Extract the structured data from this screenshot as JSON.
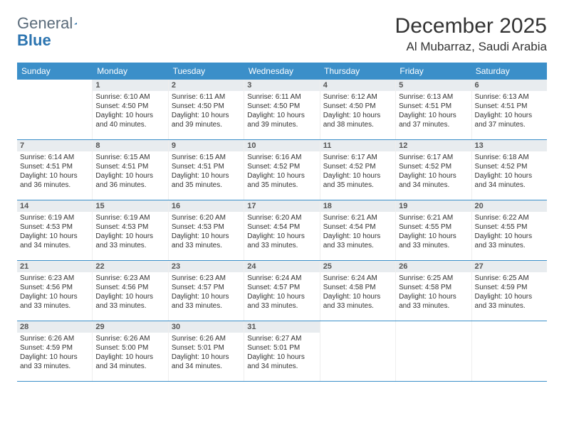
{
  "logo": {
    "text1": "General",
    "text2": "Blue"
  },
  "title": "December 2025",
  "location": "Al Mubarraz, Saudi Arabia",
  "colors": {
    "header_bg": "#3b8fc9",
    "header_text": "#ffffff",
    "daynum_bg": "#e8ecef",
    "week_divider": "#3b8fc9",
    "logo_icon": "#1f6aa5"
  },
  "daynames": [
    "Sunday",
    "Monday",
    "Tuesday",
    "Wednesday",
    "Thursday",
    "Friday",
    "Saturday"
  ],
  "weeks": [
    [
      {
        "day": "",
        "lines": []
      },
      {
        "day": "1",
        "lines": [
          "Sunrise: 6:10 AM",
          "Sunset: 4:50 PM",
          "Daylight: 10 hours",
          "and 40 minutes."
        ]
      },
      {
        "day": "2",
        "lines": [
          "Sunrise: 6:11 AM",
          "Sunset: 4:50 PM",
          "Daylight: 10 hours",
          "and 39 minutes."
        ]
      },
      {
        "day": "3",
        "lines": [
          "Sunrise: 6:11 AM",
          "Sunset: 4:50 PM",
          "Daylight: 10 hours",
          "and 39 minutes."
        ]
      },
      {
        "day": "4",
        "lines": [
          "Sunrise: 6:12 AM",
          "Sunset: 4:50 PM",
          "Daylight: 10 hours",
          "and 38 minutes."
        ]
      },
      {
        "day": "5",
        "lines": [
          "Sunrise: 6:13 AM",
          "Sunset: 4:51 PM",
          "Daylight: 10 hours",
          "and 37 minutes."
        ]
      },
      {
        "day": "6",
        "lines": [
          "Sunrise: 6:13 AM",
          "Sunset: 4:51 PM",
          "Daylight: 10 hours",
          "and 37 minutes."
        ]
      }
    ],
    [
      {
        "day": "7",
        "lines": [
          "Sunrise: 6:14 AM",
          "Sunset: 4:51 PM",
          "Daylight: 10 hours",
          "and 36 minutes."
        ]
      },
      {
        "day": "8",
        "lines": [
          "Sunrise: 6:15 AM",
          "Sunset: 4:51 PM",
          "Daylight: 10 hours",
          "and 36 minutes."
        ]
      },
      {
        "day": "9",
        "lines": [
          "Sunrise: 6:15 AM",
          "Sunset: 4:51 PM",
          "Daylight: 10 hours",
          "and 35 minutes."
        ]
      },
      {
        "day": "10",
        "lines": [
          "Sunrise: 6:16 AM",
          "Sunset: 4:52 PM",
          "Daylight: 10 hours",
          "and 35 minutes."
        ]
      },
      {
        "day": "11",
        "lines": [
          "Sunrise: 6:17 AM",
          "Sunset: 4:52 PM",
          "Daylight: 10 hours",
          "and 35 minutes."
        ]
      },
      {
        "day": "12",
        "lines": [
          "Sunrise: 6:17 AM",
          "Sunset: 4:52 PM",
          "Daylight: 10 hours",
          "and 34 minutes."
        ]
      },
      {
        "day": "13",
        "lines": [
          "Sunrise: 6:18 AM",
          "Sunset: 4:52 PM",
          "Daylight: 10 hours",
          "and 34 minutes."
        ]
      }
    ],
    [
      {
        "day": "14",
        "lines": [
          "Sunrise: 6:19 AM",
          "Sunset: 4:53 PM",
          "Daylight: 10 hours",
          "and 34 minutes."
        ]
      },
      {
        "day": "15",
        "lines": [
          "Sunrise: 6:19 AM",
          "Sunset: 4:53 PM",
          "Daylight: 10 hours",
          "and 33 minutes."
        ]
      },
      {
        "day": "16",
        "lines": [
          "Sunrise: 6:20 AM",
          "Sunset: 4:53 PM",
          "Daylight: 10 hours",
          "and 33 minutes."
        ]
      },
      {
        "day": "17",
        "lines": [
          "Sunrise: 6:20 AM",
          "Sunset: 4:54 PM",
          "Daylight: 10 hours",
          "and 33 minutes."
        ]
      },
      {
        "day": "18",
        "lines": [
          "Sunrise: 6:21 AM",
          "Sunset: 4:54 PM",
          "Daylight: 10 hours",
          "and 33 minutes."
        ]
      },
      {
        "day": "19",
        "lines": [
          "Sunrise: 6:21 AM",
          "Sunset: 4:55 PM",
          "Daylight: 10 hours",
          "and 33 minutes."
        ]
      },
      {
        "day": "20",
        "lines": [
          "Sunrise: 6:22 AM",
          "Sunset: 4:55 PM",
          "Daylight: 10 hours",
          "and 33 minutes."
        ]
      }
    ],
    [
      {
        "day": "21",
        "lines": [
          "Sunrise: 6:23 AM",
          "Sunset: 4:56 PM",
          "Daylight: 10 hours",
          "and 33 minutes."
        ]
      },
      {
        "day": "22",
        "lines": [
          "Sunrise: 6:23 AM",
          "Sunset: 4:56 PM",
          "Daylight: 10 hours",
          "and 33 minutes."
        ]
      },
      {
        "day": "23",
        "lines": [
          "Sunrise: 6:23 AM",
          "Sunset: 4:57 PM",
          "Daylight: 10 hours",
          "and 33 minutes."
        ]
      },
      {
        "day": "24",
        "lines": [
          "Sunrise: 6:24 AM",
          "Sunset: 4:57 PM",
          "Daylight: 10 hours",
          "and 33 minutes."
        ]
      },
      {
        "day": "25",
        "lines": [
          "Sunrise: 6:24 AM",
          "Sunset: 4:58 PM",
          "Daylight: 10 hours",
          "and 33 minutes."
        ]
      },
      {
        "day": "26",
        "lines": [
          "Sunrise: 6:25 AM",
          "Sunset: 4:58 PM",
          "Daylight: 10 hours",
          "and 33 minutes."
        ]
      },
      {
        "day": "27",
        "lines": [
          "Sunrise: 6:25 AM",
          "Sunset: 4:59 PM",
          "Daylight: 10 hours",
          "and 33 minutes."
        ]
      }
    ],
    [
      {
        "day": "28",
        "lines": [
          "Sunrise: 6:26 AM",
          "Sunset: 4:59 PM",
          "Daylight: 10 hours",
          "and 33 minutes."
        ]
      },
      {
        "day": "29",
        "lines": [
          "Sunrise: 6:26 AM",
          "Sunset: 5:00 PM",
          "Daylight: 10 hours",
          "and 34 minutes."
        ]
      },
      {
        "day": "30",
        "lines": [
          "Sunrise: 6:26 AM",
          "Sunset: 5:01 PM",
          "Daylight: 10 hours",
          "and 34 minutes."
        ]
      },
      {
        "day": "31",
        "lines": [
          "Sunrise: 6:27 AM",
          "Sunset: 5:01 PM",
          "Daylight: 10 hours",
          "and 34 minutes."
        ]
      },
      {
        "day": "",
        "lines": []
      },
      {
        "day": "",
        "lines": []
      },
      {
        "day": "",
        "lines": []
      }
    ]
  ]
}
